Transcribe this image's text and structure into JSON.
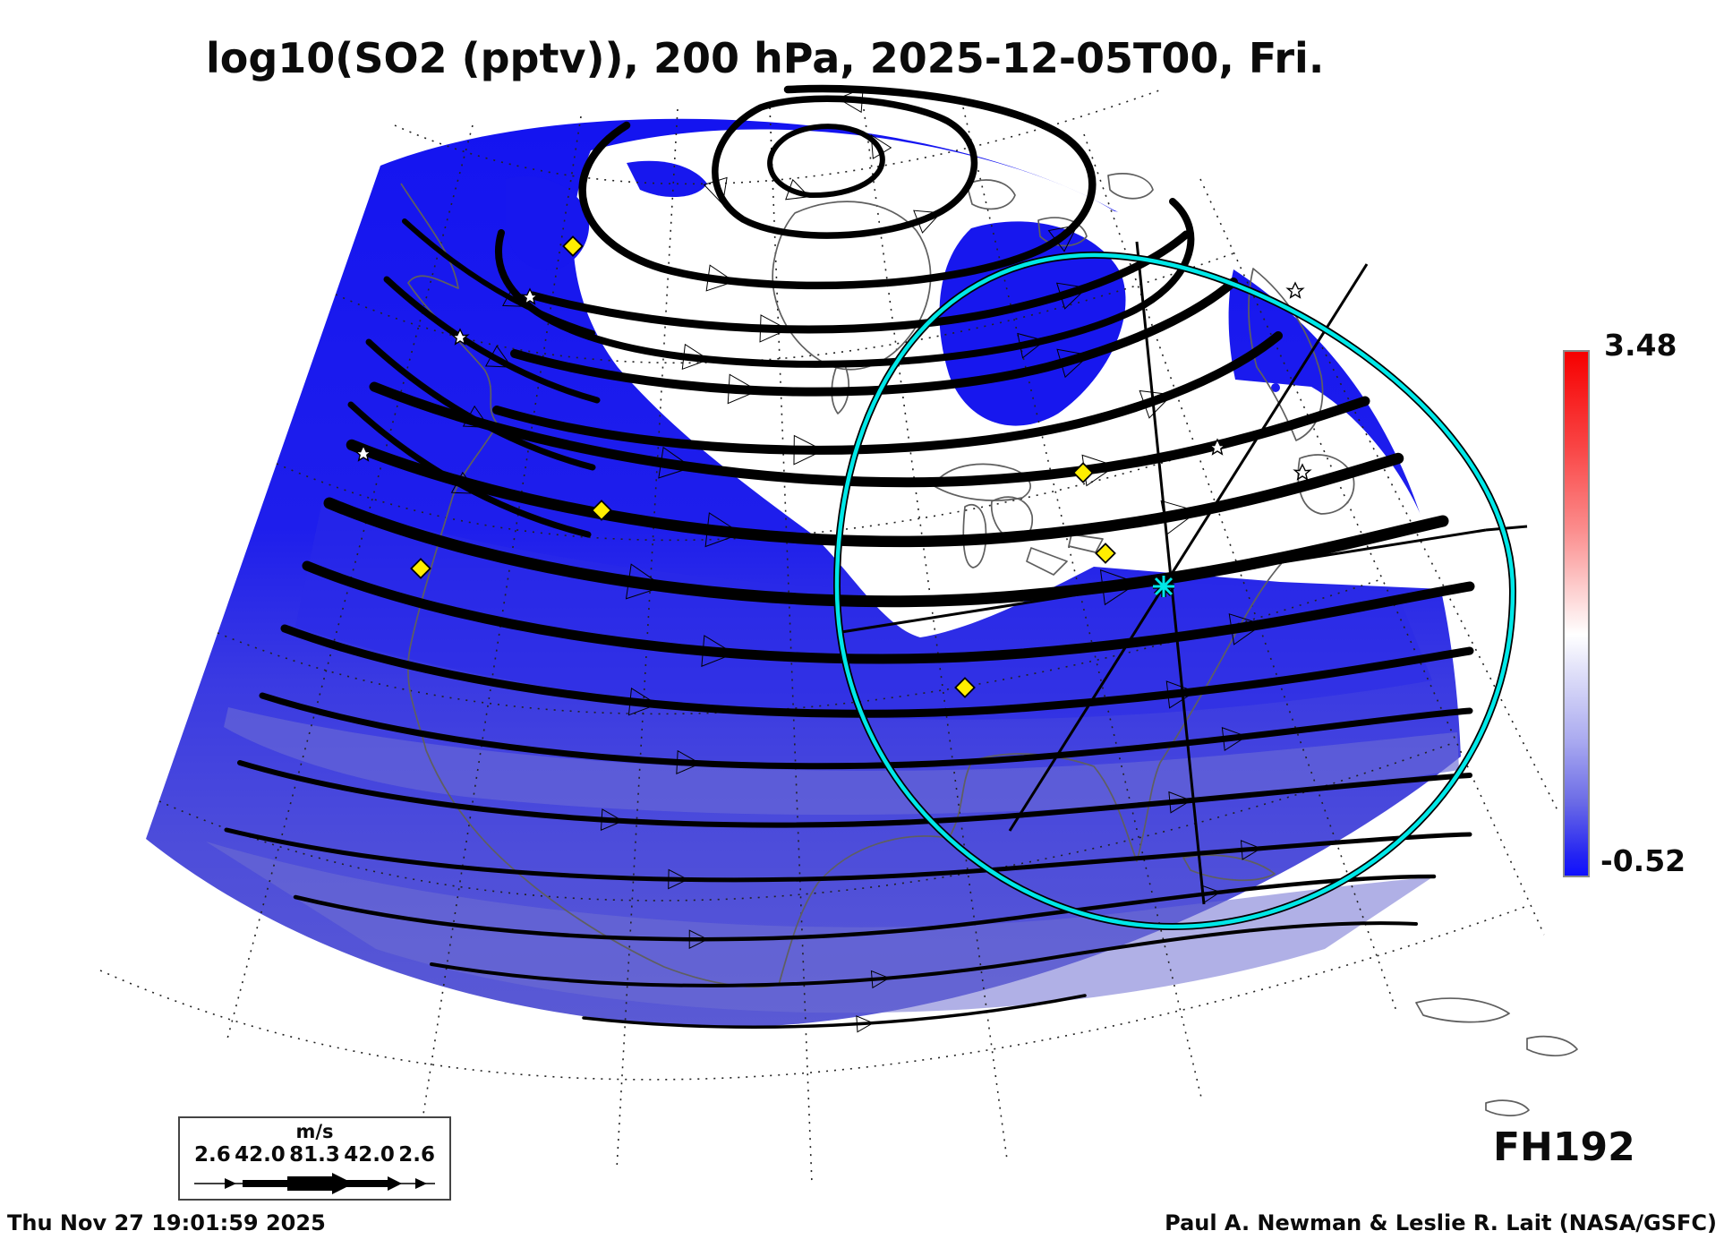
{
  "title": "log10(SO2 (pptv)), 200 hPa, 2025-12-05T00, Fri.",
  "colorbar": {
    "max_label": "3.48",
    "min_label": "-0.52",
    "top_color": "#f60000",
    "mid_color": "#ffffff",
    "bottom_color": "#0f0fff"
  },
  "wind_legend": {
    "units": "m/s",
    "ticks": [
      "2.6",
      "42.0",
      "81.3",
      "42.0",
      "2.6"
    ]
  },
  "forecast_hour": "FH192",
  "footer": {
    "timestamp": "Thu Nov 27 19:01:59 2025",
    "credit": "Paul A. Newman & Leslie R. Lait (NASA/GSFC)"
  },
  "map": {
    "quantity": "SO2",
    "level": "200 hPa",
    "colors": {
      "so2_field_blue": "#1414f0",
      "so2_field_light_blue": "#5858d4",
      "range_ring_cyan": "#00e8e8",
      "site_marker_yellow": "#ffee00",
      "coastline_gray": "#5f5f5f"
    },
    "markers": {
      "yellow_diamonds": 6,
      "white_stars": 6,
      "cyan_center_star": 1
    }
  }
}
